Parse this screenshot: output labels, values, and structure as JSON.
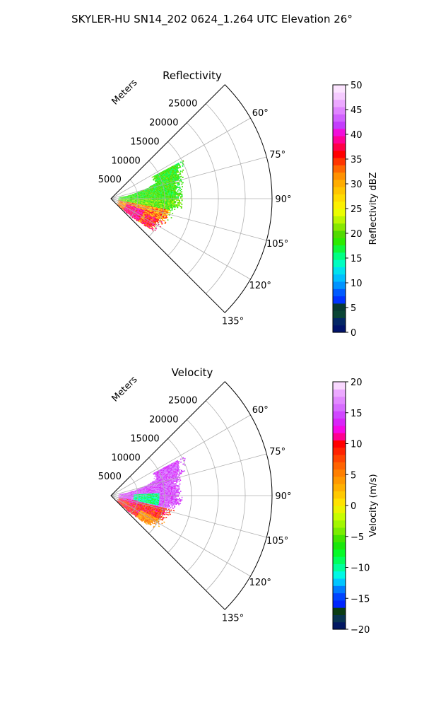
{
  "figure": {
    "suptitle": "SKYLER-HU  SN14_202  0624_1.264 UTC Elevation 26°"
  },
  "chart_data": [
    {
      "type": "heatmap",
      "projection": "polar-sector",
      "title": "Reflectivity",
      "radial_label": "Meters",
      "radial_ticks": [
        "5000",
        "10000",
        "15000",
        "20000",
        "25000"
      ],
      "radial_max": 30000,
      "theta_range_deg": [
        45,
        135
      ],
      "angular_ticks": [
        "60°",
        "75°",
        "90°",
        "105°",
        "120°",
        "135°"
      ],
      "grid": true,
      "colorbar": {
        "label": "Reflectivity dBZ",
        "range": [
          0,
          50
        ],
        "ticks": [
          "0",
          "5",
          "10",
          "15",
          "20",
          "25",
          "30",
          "35",
          "40",
          "45",
          "50"
        ],
        "colormap": "pyart_NWSRef"
      },
      "echo_summary": {
        "core_values_dbz": [
          35,
          40
        ],
        "edge_values_dbz": [
          15,
          22
        ],
        "echo_range_m": [
          0,
          16000
        ]
      }
    },
    {
      "type": "heatmap",
      "projection": "polar-sector",
      "title": "Velocity",
      "radial_label": "Meters",
      "radial_ticks": [
        "5000",
        "10000",
        "15000",
        "20000",
        "25000"
      ],
      "radial_max": 30000,
      "theta_range_deg": [
        45,
        135
      ],
      "angular_ticks": [
        "60°",
        "75°",
        "90°",
        "105°",
        "120°",
        "135°"
      ],
      "grid": true,
      "colorbar": {
        "label": "Velocity (m/s)",
        "range": [
          -20,
          20
        ],
        "ticks": [
          "−20",
          "−15",
          "−10",
          "−5",
          "0",
          "5",
          "10",
          "15",
          "20"
        ],
        "colormap": "pyart_NWSVel"
      },
      "echo_summary": {
        "inbound_values_ms": [
          -12,
          -8
        ],
        "outbound_values_ms": [
          8,
          15
        ],
        "echo_range_m": [
          0,
          16000
        ]
      }
    }
  ]
}
